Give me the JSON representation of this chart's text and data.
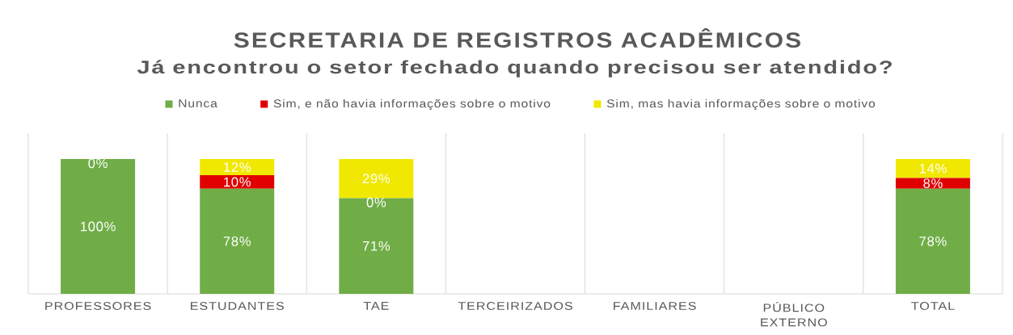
{
  "chart_data": {
    "type": "bar",
    "stacked": true,
    "title": "SECRETARIA DE REGISTROS ACADÊMICOS",
    "subtitle": "Já encontrou o setor fechado quando precisou ser atendido?",
    "categories": [
      "PROFESSORES",
      "ESTUDANTES",
      "TAE",
      "TERCEIRIZADOS",
      "FAMILIARES",
      "PÚBLICO EXTERNO",
      "TOTAL"
    ],
    "series": [
      {
        "name": "Nunca",
        "color": "#70ad47",
        "values": [
          100,
          78,
          71,
          null,
          null,
          null,
          78
        ],
        "value_labels": [
          "100%",
          "78%",
          "71%",
          null,
          null,
          null,
          "78%"
        ]
      },
      {
        "name": "Sim, e não havia informações sobre o motivo",
        "color": "#e00000",
        "values": [
          0,
          10,
          0,
          null,
          null,
          null,
          8
        ],
        "value_labels": [
          "0%",
          "10%",
          "0%",
          null,
          null,
          null,
          "8%"
        ]
      },
      {
        "name": "Sim, mas havia informações sobre o motivo",
        "color": "#f0e800",
        "values": [
          0,
          12,
          29,
          null,
          null,
          null,
          14
        ],
        "value_labels": [
          null,
          "12%",
          "29%",
          null,
          null,
          null,
          "14%"
        ]
      }
    ],
    "legend": "top",
    "grid": "x"
  }
}
